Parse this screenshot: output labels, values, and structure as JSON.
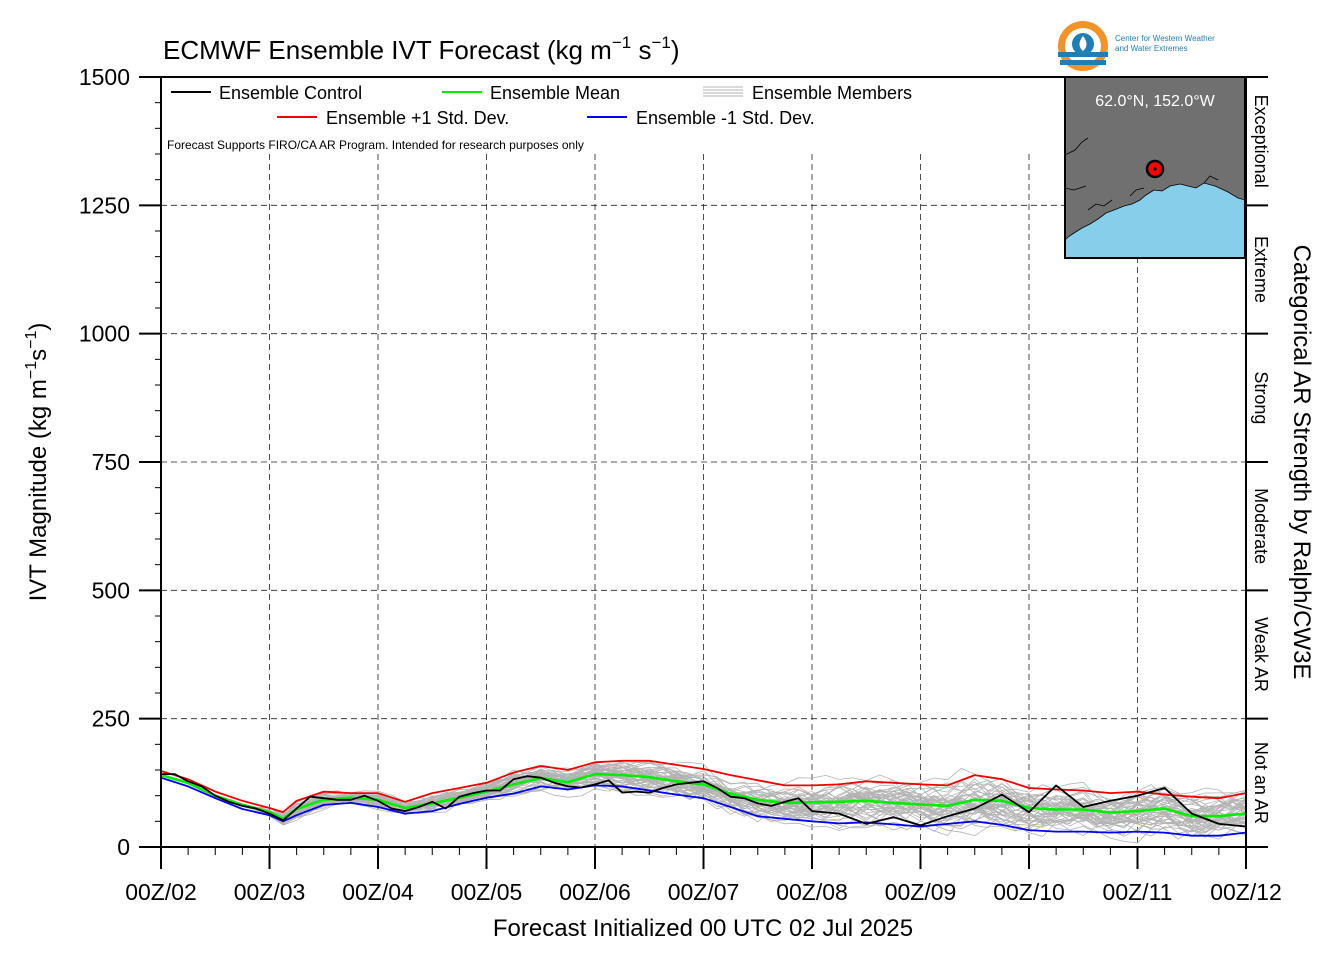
{
  "chart_data": {
    "type": "line",
    "title": "ECMWF Ensemble IVT Forecast (kg m⁻¹ s⁻¹)",
    "title_parts": {
      "main": "ECMWF Ensemble IVT Forecast (kg m",
      "sup1": "−1",
      "mid": " s",
      "sup2": "−1",
      "end": ")"
    },
    "xlabel": "Forecast Initialized 00 UTC 02 Jul 2025",
    "ylabel": "IVT Magnitude (kg m⁻¹s⁻¹)",
    "ylabel_parts": {
      "main": "IVT Magnitude (kg m",
      "sup1": "−1",
      "mid": "s",
      "sup2": "−1",
      "end": ")"
    },
    "right_label": "Categorical AR Strength by Ralph/CW3E",
    "note": "Forecast Supports FIRO/CA AR Program. Intended for research purposes only",
    "xlim": [
      0,
      240
    ],
    "ylim": [
      0,
      1500
    ],
    "x_unit": "forecast hour",
    "x_ticks": [
      {
        "x": 0,
        "label": "00Z/02"
      },
      {
        "x": 24,
        "label": "00Z/03"
      },
      {
        "x": 48,
        "label": "00Z/04"
      },
      {
        "x": 72,
        "label": "00Z/05"
      },
      {
        "x": 96,
        "label": "00Z/06"
      },
      {
        "x": 120,
        "label": "00Z/07"
      },
      {
        "x": 144,
        "label": "00Z/08"
      },
      {
        "x": 168,
        "label": "00Z/09"
      },
      {
        "x": 192,
        "label": "00Z/10"
      },
      {
        "x": 216,
        "label": "00Z/11"
      },
      {
        "x": 240,
        "label": "00Z/12"
      }
    ],
    "y_ticks": [
      0,
      250,
      500,
      750,
      1000,
      1250,
      1500
    ],
    "grid": true,
    "legend_position": "top-left",
    "categories_right": [
      {
        "label": "Not an AR",
        "from": 0,
        "to": 250
      },
      {
        "label": "Weak AR",
        "from": 250,
        "to": 500
      },
      {
        "label": "Moderate",
        "from": 500,
        "to": 750
      },
      {
        "label": "Strong",
        "from": 750,
        "to": 1000
      },
      {
        "label": "Extreme",
        "from": 1000,
        "to": 1250
      },
      {
        "label": "Exceptional",
        "from": 1250,
        "to": 1500
      }
    ],
    "location_label": "62.0°N, 152.0°W",
    "logo_text": [
      "Center for Western Weather",
      "and Water Extremes"
    ],
    "series": [
      {
        "name": "Ensemble Control",
        "color": "#000000",
        "x": [
          0,
          3,
          6,
          9,
          12,
          15,
          18,
          21,
          24,
          27,
          30,
          33,
          36,
          39,
          42,
          45,
          48,
          51,
          54,
          57,
          60,
          63,
          66,
          69,
          72,
          75,
          78,
          81,
          84,
          87,
          90,
          93,
          96,
          99,
          102,
          105,
          108,
          111,
          114,
          117,
          120,
          123,
          126,
          129,
          132,
          135,
          138,
          141,
          144,
          150,
          156,
          162,
          168,
          174,
          180,
          186,
          192,
          198,
          204,
          210,
          216,
          222,
          228,
          234,
          240
        ],
        "values": [
          142,
          142,
          128,
          118,
          100,
          88,
          80,
          75,
          65,
          52,
          75,
          98,
          95,
          92,
          92,
          100,
          90,
          75,
          70,
          78,
          88,
          75,
          98,
          105,
          110,
          110,
          132,
          138,
          135,
          125,
          118,
          116,
          122,
          130,
          106,
          108,
          106,
          115,
          122,
          125,
          128,
          115,
          98,
          95,
          85,
          80,
          88,
          95,
          70,
          65,
          45,
          58,
          42,
          60,
          75,
          102,
          68,
          120,
          78,
          90,
          100,
          115,
          65,
          45,
          40
        ]
      },
      {
        "name": "Ensemble Mean",
        "color": "#00ee00",
        "x": [
          0,
          6,
          12,
          18,
          24,
          27,
          30,
          36,
          42,
          48,
          54,
          60,
          66,
          72,
          78,
          84,
          90,
          96,
          102,
          108,
          114,
          120,
          126,
          132,
          138,
          144,
          150,
          156,
          162,
          168,
          174,
          180,
          186,
          192,
          198,
          204,
          210,
          216,
          222,
          228,
          234,
          240
        ],
        "values": [
          140,
          125,
          100,
          82,
          68,
          55,
          74,
          92,
          96,
          92,
          76,
          85,
          96,
          108,
          122,
          134,
          126,
          142,
          140,
          136,
          128,
          122,
          104,
          92,
          86,
          87,
          88,
          90,
          86,
          83,
          80,
          92,
          90,
          76,
          73,
          73,
          67,
          70,
          75,
          60,
          60,
          65
        ]
      },
      {
        "name": "Ensemble +1 Std. Dev.",
        "color": "#ee0000",
        "x": [
          0,
          6,
          12,
          18,
          24,
          27,
          30,
          36,
          42,
          48,
          54,
          60,
          66,
          72,
          78,
          84,
          90,
          96,
          102,
          108,
          114,
          120,
          126,
          132,
          138,
          144,
          150,
          156,
          162,
          168,
          174,
          180,
          186,
          192,
          198,
          204,
          210,
          216,
          222,
          228,
          234,
          240
        ],
        "values": [
          148,
          132,
          108,
          90,
          76,
          68,
          90,
          108,
          105,
          105,
          88,
          105,
          115,
          125,
          145,
          158,
          150,
          165,
          168,
          168,
          160,
          152,
          140,
          130,
          120,
          120,
          122,
          128,
          125,
          122,
          120,
          140,
          132,
          115,
          112,
          110,
          105,
          108,
          102,
          98,
          95,
          105
        ]
      },
      {
        "name": "Ensemble -1 Std. Dev.",
        "color": "#0000ee",
        "x": [
          0,
          6,
          12,
          18,
          24,
          27,
          30,
          36,
          42,
          48,
          54,
          60,
          66,
          72,
          78,
          84,
          90,
          96,
          102,
          108,
          114,
          120,
          126,
          132,
          138,
          144,
          150,
          156,
          162,
          168,
          174,
          180,
          186,
          192,
          198,
          204,
          210,
          216,
          222,
          228,
          234,
          240
        ],
        "values": [
          135,
          118,
          95,
          74,
          62,
          50,
          62,
          82,
          86,
          78,
          65,
          70,
          84,
          96,
          104,
          118,
          112,
          120,
          118,
          110,
          102,
          95,
          78,
          60,
          55,
          50,
          46,
          48,
          44,
          40,
          45,
          50,
          43,
          33,
          30,
          30,
          28,
          30,
          28,
          22,
          22,
          28
        ]
      }
    ],
    "members": {
      "name": "Ensemble Members",
      "color": "#b3b3b3",
      "count": 50
    }
  }
}
